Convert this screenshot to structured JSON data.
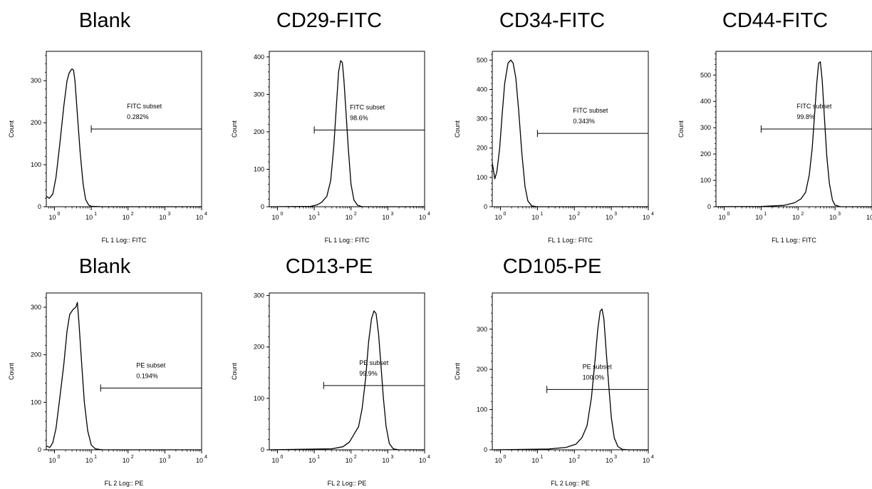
{
  "chart_data": [
    {
      "type": "histogram",
      "title": "Blank",
      "xlabel": "FL 1 Log:: FITC",
      "ylabel": "Count",
      "x_scale": "log",
      "xlim": [
        0.6,
        10000
      ],
      "ylim": [
        0,
        370
      ],
      "y_ticks": [
        0,
        100,
        200,
        300
      ],
      "gate": {
        "name": "FITC subset",
        "percent": "0.282%",
        "from": 10,
        "to": 10000,
        "level": 185
      },
      "series": [
        {
          "values": [
            [
              0.6,
              25
            ],
            [
              0.72,
              20
            ],
            [
              0.9,
              30
            ],
            [
              1.1,
              70
            ],
            [
              1.4,
              150
            ],
            [
              1.8,
              240
            ],
            [
              2.2,
              300
            ],
            [
              2.5,
              318
            ],
            [
              2.8,
              325
            ],
            [
              3.0,
              328
            ],
            [
              3.3,
              325
            ],
            [
              3.6,
              300
            ],
            [
              4.2,
              220
            ],
            [
              5,
              130
            ],
            [
              6,
              55
            ],
            [
              7,
              18
            ],
            [
              8.5,
              4
            ],
            [
              10,
              1
            ],
            [
              20,
              0
            ],
            [
              10000,
              0
            ]
          ]
        }
      ]
    },
    {
      "type": "histogram",
      "title": "CD29-FITC",
      "xlabel": "FL 1 Log:: FITC",
      "ylabel": "Count",
      "x_scale": "log",
      "xlim": [
        0.6,
        10000
      ],
      "ylim": [
        0,
        415
      ],
      "y_ticks": [
        0,
        100,
        200,
        300,
        400
      ],
      "gate": {
        "name": "FITC subset",
        "percent": "98.6%",
        "from": 10,
        "to": 10000,
        "level": 205
      },
      "series": [
        {
          "values": [
            [
              0.6,
              0
            ],
            [
              8,
              1
            ],
            [
              12,
              5
            ],
            [
              16,
              12
            ],
            [
              22,
              28
            ],
            [
              28,
              70
            ],
            [
              34,
              160
            ],
            [
              40,
              270
            ],
            [
              46,
              360
            ],
            [
              52,
              390
            ],
            [
              58,
              385
            ],
            [
              64,
              340
            ],
            [
              72,
              260
            ],
            [
              85,
              150
            ],
            [
              100,
              60
            ],
            [
              120,
              18
            ],
            [
              150,
              4
            ],
            [
              200,
              0
            ],
            [
              10000,
              0
            ]
          ]
        }
      ]
    },
    {
      "type": "histogram",
      "title": "CD34-FITC",
      "xlabel": "FL 1 Log:: FITC",
      "ylabel": "Count",
      "x_scale": "log",
      "xlim": [
        0.6,
        10000
      ],
      "ylim": [
        0,
        530
      ],
      "y_ticks": [
        0,
        100,
        200,
        300,
        400,
        500
      ],
      "gate": {
        "name": "FITC subset",
        "percent": "0.343%",
        "from": 10,
        "to": 10000,
        "level": 250
      },
      "series": [
        {
          "values": [
            [
              0.6,
              150
            ],
            [
              0.7,
              95
            ],
            [
              0.8,
              120
            ],
            [
              0.95,
              200
            ],
            [
              1.1,
              310
            ],
            [
              1.3,
              420
            ],
            [
              1.6,
              490
            ],
            [
              1.9,
              500
            ],
            [
              2.2,
              490
            ],
            [
              2.6,
              440
            ],
            [
              3.1,
              330
            ],
            [
              3.8,
              180
            ],
            [
              4.6,
              70
            ],
            [
              5.5,
              20
            ],
            [
              7,
              3
            ],
            [
              10,
              0
            ],
            [
              10000,
              0
            ]
          ]
        }
      ]
    },
    {
      "type": "histogram",
      "title": "CD44-FITC",
      "xlabel": "FL 1 Log:: FITC",
      "ylabel": "Count",
      "x_scale": "log",
      "xlim": [
        0.6,
        10000
      ],
      "ylim": [
        0,
        590
      ],
      "y_ticks": [
        0,
        100,
        200,
        300,
        400,
        500
      ],
      "gate": {
        "name": "FITC subset",
        "percent": "99.8%",
        "from": 10,
        "to": 10000,
        "level": 295
      },
      "series": [
        {
          "values": [
            [
              0.6,
              0
            ],
            [
              10,
              1
            ],
            [
              40,
              5
            ],
            [
              80,
              15
            ],
            [
              120,
              30
            ],
            [
              160,
              55
            ],
            [
              200,
              120
            ],
            [
              240,
              220
            ],
            [
              280,
              350
            ],
            [
              320,
              470
            ],
            [
              360,
              545
            ],
            [
              400,
              550
            ],
            [
              450,
              480
            ],
            [
              520,
              330
            ],
            [
              600,
              190
            ],
            [
              700,
              90
            ],
            [
              850,
              25
            ],
            [
              1000,
              6
            ],
            [
              1400,
              0
            ],
            [
              10000,
              0
            ]
          ]
        }
      ]
    },
    {
      "type": "histogram",
      "title": "Blank",
      "xlabel": "FL 2 Log:: PE",
      "ylabel": "Count",
      "x_scale": "log",
      "xlim": [
        0.6,
        10000
      ],
      "ylim": [
        0,
        330
      ],
      "y_ticks": [
        0,
        100,
        200,
        300
      ],
      "gate": {
        "name": "PE subset",
        "percent": "0.194%",
        "from": 18,
        "to": 10000,
        "level": 130
      },
      "series": [
        {
          "values": [
            [
              0.6,
              8
            ],
            [
              0.75,
              5
            ],
            [
              0.9,
              15
            ],
            [
              1.1,
              45
            ],
            [
              1.4,
              110
            ],
            [
              1.8,
              180
            ],
            [
              2.2,
              250
            ],
            [
              2.6,
              285
            ],
            [
              3.2,
              295
            ],
            [
              3.8,
              300
            ],
            [
              4.2,
              310
            ],
            [
              4.6,
              270
            ],
            [
              5.5,
              180
            ],
            [
              6.5,
              100
            ],
            [
              8,
              40
            ],
            [
              10,
              10
            ],
            [
              13,
              2
            ],
            [
              20,
              0
            ],
            [
              10000,
              0
            ]
          ]
        }
      ]
    },
    {
      "type": "histogram",
      "title": "CD13-PE",
      "xlabel": "FL 2 Log:: PE",
      "ylabel": "Count",
      "x_scale": "log",
      "xlim": [
        0.6,
        10000
      ],
      "ylim": [
        0,
        305
      ],
      "y_ticks": [
        0,
        100,
        200,
        300
      ],
      "gate": {
        "name": "PE subset",
        "percent": "99.9%",
        "from": 18,
        "to": 10000,
        "level": 125
      },
      "series": [
        {
          "values": [
            [
              0.6,
              0
            ],
            [
              30,
              2
            ],
            [
              60,
              6
            ],
            [
              90,
              15
            ],
            [
              120,
              30
            ],
            [
              160,
              45
            ],
            [
              200,
              80
            ],
            [
              250,
              140
            ],
            [
              300,
              210
            ],
            [
              360,
              255
            ],
            [
              420,
              270
            ],
            [
              480,
              265
            ],
            [
              560,
              225
            ],
            [
              650,
              165
            ],
            [
              760,
              100
            ],
            [
              900,
              45
            ],
            [
              1100,
              12
            ],
            [
              1400,
              2
            ],
            [
              2000,
              0
            ],
            [
              10000,
              0
            ]
          ]
        }
      ]
    },
    {
      "type": "histogram",
      "title": "CD105-PE",
      "xlabel": "FL 2 Log:: PE",
      "ylabel": "Count",
      "x_scale": "log",
      "xlim": [
        0.6,
        10000
      ],
      "ylim": [
        0,
        390
      ],
      "y_ticks": [
        0,
        100,
        200,
        300
      ],
      "gate": {
        "name": "PE subset",
        "percent": "100.0%",
        "from": 18,
        "to": 10000,
        "level": 150
      },
      "series": [
        {
          "values": [
            [
              0.6,
              0
            ],
            [
              20,
              2
            ],
            [
              60,
              6
            ],
            [
              110,
              14
            ],
            [
              160,
              30
            ],
            [
              220,
              60
            ],
            [
              290,
              130
            ],
            [
              360,
              220
            ],
            [
              430,
              300
            ],
            [
              500,
              345
            ],
            [
              560,
              350
            ],
            [
              630,
              325
            ],
            [
              720,
              250
            ],
            [
              850,
              160
            ],
            [
              1000,
              80
            ],
            [
              1200,
              30
            ],
            [
              1500,
              8
            ],
            [
              2000,
              1
            ],
            [
              3000,
              0
            ],
            [
              10000,
              0
            ]
          ]
        }
      ]
    }
  ]
}
